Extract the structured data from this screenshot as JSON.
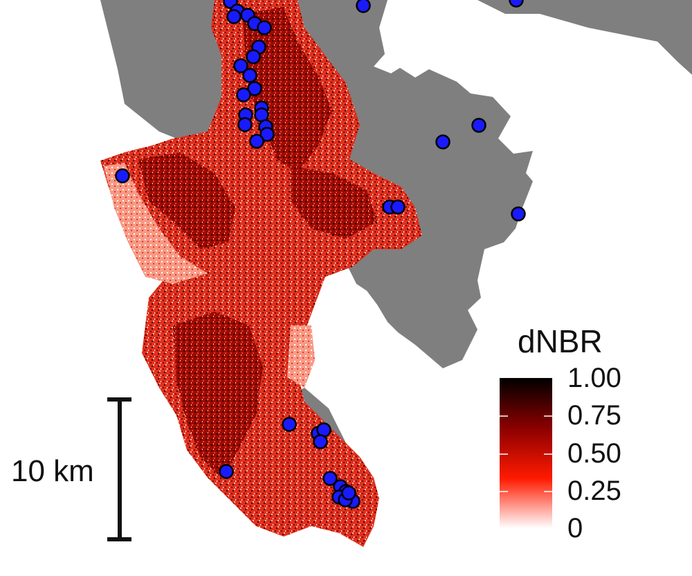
{
  "legend": {
    "title": "dNBR",
    "ticks": [
      {
        "value": 1.0,
        "label": "1.00"
      },
      {
        "value": 0.75,
        "label": "0.75"
      },
      {
        "value": 0.5,
        "label": "0.50"
      },
      {
        "value": 0.25,
        "label": "0.25"
      },
      {
        "value": 0,
        "label": "0"
      }
    ],
    "range": [
      0,
      1.0
    ],
    "color_stops": [
      "#ffffff",
      "#ff1a00",
      "#8a0000",
      "#000000"
    ]
  },
  "scale_bar": {
    "label": "10 km"
  },
  "colors": {
    "unburned_area": "#7f7f7f",
    "sample_points": "#1a1aff",
    "point_outline": "#000000",
    "background": "#ffffff"
  }
}
